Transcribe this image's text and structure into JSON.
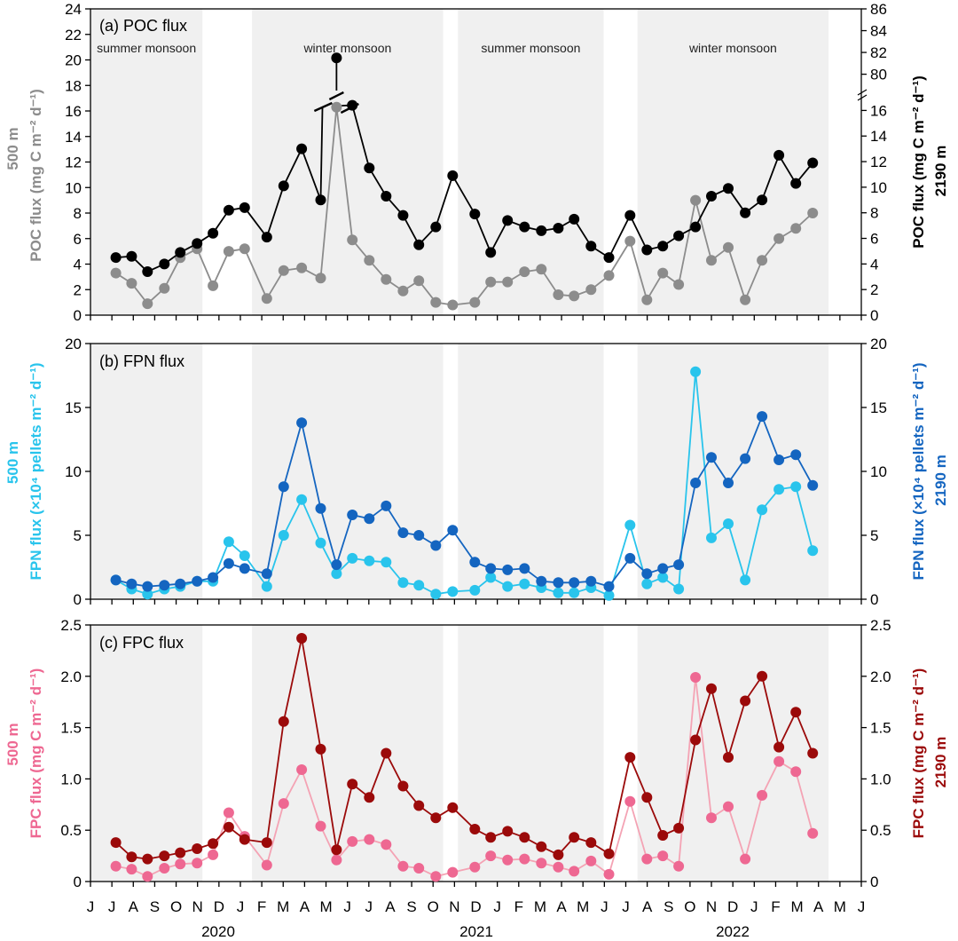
{
  "chart_data": [
    {
      "type": "line",
      "title": "(a) POC flux",
      "ylabel_left": "POC flux (mg C m⁻² d⁻¹)",
      "ylabel_left_depth": "500 m",
      "ylabel_right": "POC flux (mg C m⁻² d⁻¹)",
      "ylabel_right_depth": "2190 m",
      "ylim_left": [
        0,
        24
      ],
      "yticks_left": [
        "0",
        "2",
        "4",
        "6",
        "8",
        "10",
        "12",
        "14",
        "16",
        "18",
        "20",
        "22",
        "24"
      ],
      "ylim_right_lower": [
        0,
        17
      ],
      "ylim_right_upper": [
        78.5,
        86
      ],
      "yticks_right": [
        "0",
        "2",
        "4",
        "6",
        "8",
        "10",
        "12",
        "14",
        "16",
        "80",
        "82",
        "84",
        "86"
      ],
      "axis_break": true,
      "season_labels": [
        "summer monsoon",
        "winter monsoon",
        "summer monsoon",
        "winter monsoon"
      ],
      "series": [
        {
          "name": "500 m",
          "color": "#8c8c8c",
          "axis": "left",
          "values": [
            3.3,
            2.5,
            0.9,
            2.1,
            4.5,
            5.2,
            2.3,
            5.0,
            5.2,
            1.3,
            3.5,
            3.7,
            2.9,
            16.3,
            5.9,
            4.3,
            2.8,
            1.9,
            2.7,
            1.0,
            0.8,
            1.0,
            2.6,
            2.6,
            3.4,
            3.6,
            1.6,
            1.5,
            2.0,
            3.1,
            5.8,
            1.2,
            3.3,
            2.4,
            9.0,
            4.3,
            5.3,
            1.2,
            4.3,
            6.0,
            6.8,
            8.0
          ]
        },
        {
          "name": "2190 m",
          "color": "#000000",
          "axis": "right",
          "values": [
            4.5,
            4.6,
            3.4,
            4.0,
            4.9,
            5.6,
            6.4,
            8.2,
            8.4,
            6.1,
            10.1,
            13.0,
            9.0,
            81.5,
            16.4,
            11.5,
            9.3,
            7.8,
            5.5,
            6.9,
            10.9,
            7.9,
            4.9,
            7.4,
            6.9,
            6.6,
            6.8,
            7.5,
            5.4,
            4.5,
            7.8,
            5.1,
            5.4,
            6.2,
            6.9,
            9.3,
            9.9,
            8.0,
            9.0,
            12.5,
            10.3,
            11.9
          ]
        }
      ]
    },
    {
      "type": "line",
      "title": "(b) FPN flux",
      "ylabel_left": "FPN flux (×10⁴ pellets m⁻² d⁻¹)",
      "ylabel_left_depth": "500 m",
      "ylabel_right": "FPN flux (×10⁴ pellets m⁻² d⁻¹)",
      "ylabel_right_depth": "2190 m",
      "ylim": [
        0,
        20
      ],
      "yticks": [
        "0",
        "5",
        "10",
        "15",
        "20"
      ],
      "series": [
        {
          "name": "500 m",
          "color": "#29c4ec",
          "values": [
            1.5,
            0.8,
            0.4,
            0.8,
            1.0,
            1.4,
            1.4,
            4.5,
            3.4,
            1.0,
            5.0,
            7.8,
            4.4,
            2.0,
            3.2,
            3.0,
            2.9,
            1.3,
            1.1,
            0.4,
            0.6,
            0.7,
            1.7,
            1.0,
            1.2,
            0.9,
            0.5,
            0.5,
            0.9,
            0.3,
            5.8,
            1.2,
            1.7,
            0.8,
            17.8,
            4.8,
            5.9,
            1.5,
            7.0,
            8.6,
            8.8,
            3.8
          ]
        },
        {
          "name": "2190 m",
          "color": "#1465c0",
          "values": [
            1.5,
            1.2,
            1.0,
            1.1,
            1.2,
            1.4,
            1.7,
            2.8,
            2.4,
            2.0,
            8.8,
            13.8,
            7.1,
            2.7,
            6.6,
            6.3,
            7.3,
            5.2,
            5.0,
            4.2,
            5.4,
            2.9,
            2.4,
            2.3,
            2.4,
            1.4,
            1.3,
            1.3,
            1.4,
            1.0,
            3.2,
            2.0,
            2.4,
            2.7,
            9.1,
            11.1,
            9.1,
            11.0,
            14.3,
            10.9,
            11.3,
            8.9
          ]
        }
      ]
    },
    {
      "type": "line",
      "title": "(c) FPC flux",
      "ylabel_left": "FPC flux (mg C m⁻² d⁻¹)",
      "ylabel_left_depth": "500 m",
      "ylabel_right": "FPC flux (mg C m⁻² d⁻¹)",
      "ylabel_right_depth": "2190 m",
      "ylim": [
        0,
        2.5
      ],
      "yticks": [
        "0",
        "0.5",
        "1.0",
        "1.5",
        "2.0",
        "2.5"
      ],
      "series": [
        {
          "name": "500 m",
          "color": "#ee6892",
          "line_color": "#f4a3b4",
          "values": [
            0.15,
            0.12,
            0.05,
            0.13,
            0.17,
            0.18,
            0.26,
            0.67,
            0.44,
            0.16,
            0.76,
            1.09,
            0.54,
            0.21,
            0.39,
            0.41,
            0.36,
            0.15,
            0.13,
            0.05,
            0.09,
            0.14,
            0.25,
            0.21,
            0.22,
            0.18,
            0.14,
            0.1,
            0.2,
            0.07,
            0.78,
            0.22,
            0.25,
            0.15,
            1.99,
            0.62,
            0.73,
            0.22,
            0.84,
            1.17,
            1.07,
            0.47
          ]
        },
        {
          "name": "2190 m",
          "color": "#9b0a0a",
          "values": [
            0.38,
            0.24,
            0.22,
            0.25,
            0.28,
            0.32,
            0.37,
            0.53,
            0.41,
            0.38,
            1.56,
            2.37,
            1.29,
            0.31,
            0.95,
            0.82,
            1.25,
            0.93,
            0.74,
            0.62,
            0.72,
            0.51,
            0.43,
            0.49,
            0.43,
            0.34,
            0.26,
            0.43,
            0.38,
            0.27,
            1.21,
            0.82,
            0.45,
            0.52,
            1.38,
            1.88,
            1.21,
            1.76,
            2.0,
            1.31,
            1.65,
            1.25
          ]
        }
      ]
    }
  ],
  "x_axis": {
    "month_ticks": [
      "J",
      "J",
      "A",
      "S",
      "O",
      "N",
      "D",
      "J",
      "F",
      "M",
      "A",
      "M",
      "J",
      "J",
      "A",
      "S",
      "O",
      "N",
      "D",
      "J",
      "F",
      "M",
      "A",
      "M",
      "J",
      "J",
      "A",
      "S",
      "O",
      "N",
      "D",
      "J",
      "F",
      "M",
      "A",
      "M",
      "J"
    ],
    "years": [
      "2020",
      "2021",
      "2022"
    ],
    "start_month": "2020-06",
    "end_month": "2022-06"
  },
  "sample_dates": [
    "2020-06-25",
    "2020-07-10",
    "2020-07-25",
    "2020-08-10",
    "2020-08-25",
    "2020-09-10",
    "2020-09-25",
    "2020-10-10",
    "2020-10-25",
    "2020-11-15",
    "2020-12-01",
    "2020-12-18",
    "2021-01-05",
    "2021-01-20",
    "2021-02-04",
    "2021-02-20",
    "2021-03-08",
    "2021-03-24",
    "2021-04-08",
    "2021-04-24",
    "2021-05-10",
    "2021-05-31",
    "2021-06-15",
    "2021-07-01",
    "2021-07-17",
    "2021-08-02",
    "2021-08-18",
    "2021-09-02",
    "2021-09-18",
    "2021-10-05",
    "2021-10-25",
    "2021-11-10",
    "2021-11-25",
    "2021-12-10",
    "2021-12-26",
    "2022-01-10",
    "2022-01-26",
    "2022-02-11",
    "2022-02-27",
    "2022-03-15",
    "2022-03-31",
    "2022-04-16"
  ],
  "seasons": [
    {
      "label": "summer monsoon",
      "start": "2020-06-01",
      "end": "2020-09-15",
      "shaded": true
    },
    {
      "label": "winter monsoon",
      "start": "2020-11-01",
      "end": "2021-05-01",
      "shaded": true
    },
    {
      "label": "summer monsoon",
      "start": "2021-05-15",
      "end": "2021-09-30",
      "shaded": true
    },
    {
      "label": "winter monsoon",
      "start": "2021-11-01",
      "end": "2022-05-01",
      "shaded": true
    }
  ],
  "colors": {
    "shade": "#f0f0f0",
    "axis": "#000000"
  }
}
